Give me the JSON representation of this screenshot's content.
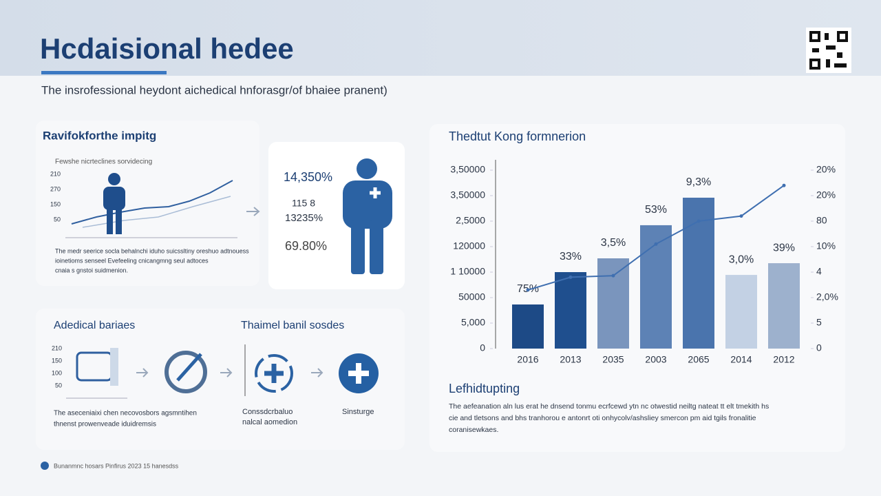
{
  "header": {
    "title": "Hcdaisional hedee",
    "subtitle": "The insrofessional heydont aichedical hnforasgr/of bhaiee pranent)"
  },
  "panel1": {
    "title": "Ravifokforthe impitg",
    "caption": "Fewshe nicrteclines sorvidecing",
    "ticks": [
      "210",
      "270",
      "150",
      "50"
    ],
    "body": [
      "The medr seerice socla behalnchi iduho suicssltiny oreshuo adtnouess",
      "ioinetioms senseel Evefeeling cnicangmng seul adtoces",
      "cnaia s gnstoi suidmenion."
    ]
  },
  "stats": [
    "14,350%",
    "115 8",
    "13235%",
    "69.80%"
  ],
  "panel2": {
    "title": "Adedical bariaes",
    "title2": "Thaimel banil sosdes",
    "ticks": [
      "210",
      "150",
      "100",
      "50"
    ],
    "labels": [
      "Conssdcrbaluo",
      "nalcal aomedion",
      "Sinsturge"
    ],
    "body": [
      "The aseceniaixi chen necovosbors agsmntihen",
      "thnenst prowenveade iduidremsis"
    ]
  },
  "chart_data": {
    "type": "bar",
    "title": "Thedtut Kong formnerion",
    "categories": [
      "2016",
      "2013",
      "2035",
      "2003",
      "2065",
      "2014",
      "2012"
    ],
    "values": [
      1.73,
      3.0,
      3.54,
      4.84,
      5.92,
      2.89,
      3.35
    ],
    "colors": [
      "#1d4a86",
      "#1f4f8e",
      "#7a95bd",
      "#5d82b5",
      "#4a74ad",
      "#c3d1e4",
      "#9db1cd"
    ],
    "annotations": [
      "75%",
      "33%",
      "3,5%",
      "53%",
      "9,3%",
      "3,0%",
      "39%"
    ],
    "ylim": [
      0,
      7
    ],
    "yticks": [
      {
        "value": 0,
        "label": "0"
      },
      {
        "value": 1,
        "label": "5,000"
      },
      {
        "value": 2,
        "label": "50000"
      },
      {
        "value": 3,
        "label": "1 10000"
      },
      {
        "value": 4,
        "label": "120000"
      },
      {
        "value": 5,
        "label": "2,5000"
      },
      {
        "value": 6,
        "label": "3,50000"
      },
      {
        "value": 7,
        "label": "3,50000"
      }
    ],
    "y2lim": [
      0,
      7
    ],
    "y2ticks": [
      {
        "value": 0,
        "label": "0"
      },
      {
        "value": 1,
        "label": "5"
      },
      {
        "value": 2,
        "label": "2,0%"
      },
      {
        "value": 3,
        "label": "4"
      },
      {
        "value": 4,
        "label": "10%"
      },
      {
        "value": 5,
        "label": "80"
      },
      {
        "value": 6,
        "label": "20%"
      },
      {
        "value": 7,
        "label": "20%"
      }
    ],
    "series": [
      {
        "name": "trend",
        "color": "#3f6fb0",
        "axis": "y2",
        "values": [
          2.3,
          2.8,
          2.86,
          4.1,
          5.0,
          5.2,
          6.4
        ]
      }
    ]
  },
  "section": {
    "title": "Lefhidtupting",
    "body": [
      "The aefeanation aln lus erat he dnsend tonmu ecrfcewd ytn nc otwestid neiltg nateat tt elt tmekith hs",
      "cie and tletsons and bhs tranhorou e antonrt oti onhycolv/ashsliey smercon pm aid tgils fronalitie",
      "coranisewkaes."
    ]
  },
  "footer": "Bunanmnc hosars Pinfirus 2023 15 hanesdss"
}
